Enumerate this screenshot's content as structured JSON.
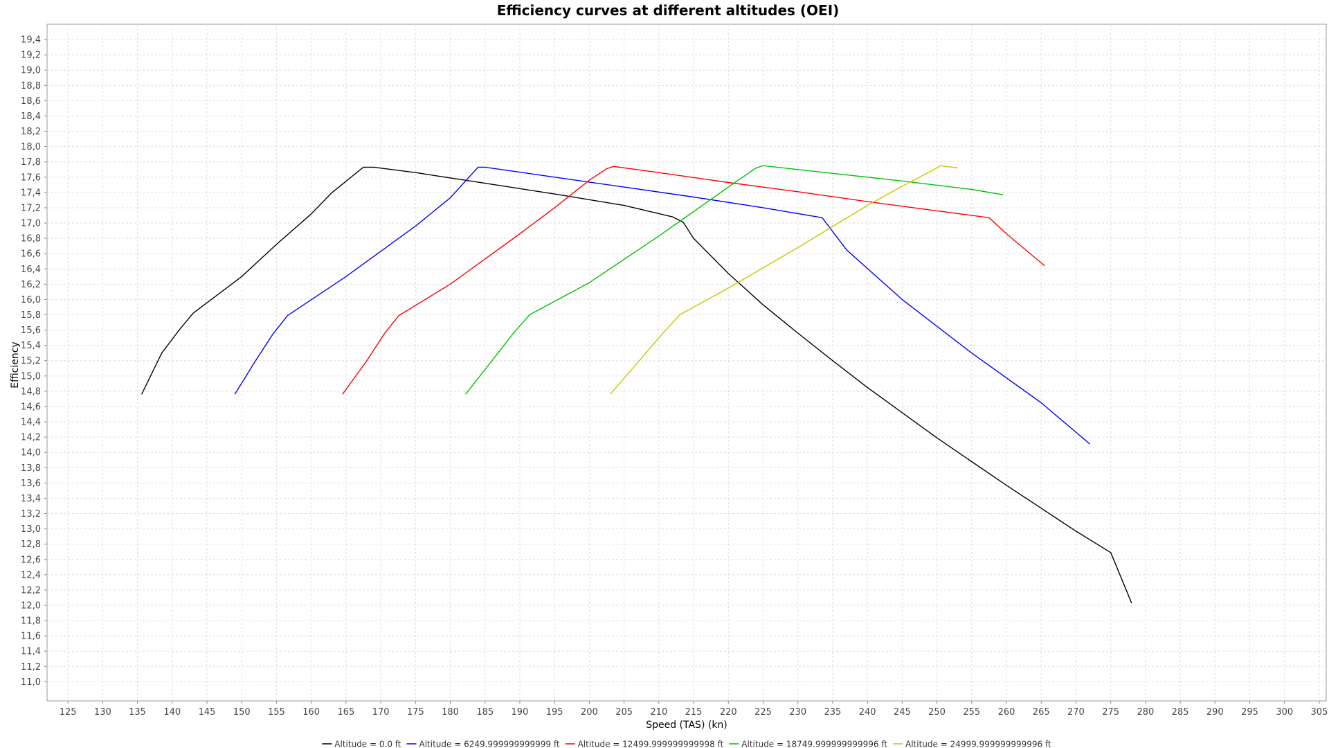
{
  "chart_data": {
    "type": "line",
    "title": "Efficiency curves at different altitudes (OEI)",
    "xlabel": "Speed (TAS) (kn)",
    "ylabel": "Efficiency",
    "xlim": [
      122,
      306
    ],
    "ylim": [
      10.75,
      19.6
    ],
    "x_ticks": [
      125,
      130,
      135,
      140,
      145,
      150,
      155,
      160,
      165,
      170,
      175,
      180,
      185,
      190,
      195,
      200,
      205,
      210,
      215,
      220,
      225,
      230,
      235,
      240,
      245,
      250,
      255,
      260,
      265,
      270,
      275,
      280,
      285,
      290,
      295,
      300,
      305
    ],
    "y_ticks": [
      11.0,
      11.2,
      11.4,
      11.6,
      11.8,
      12.0,
      12.2,
      12.4,
      12.6,
      12.8,
      13.0,
      13.2,
      13.4,
      13.6,
      13.8,
      14.0,
      14.2,
      14.4,
      14.6,
      14.8,
      15.0,
      15.2,
      15.4,
      15.6,
      15.8,
      16.0,
      16.2,
      16.4,
      16.6,
      16.8,
      17.0,
      17.2,
      17.4,
      17.6,
      17.8,
      18.0,
      18.2,
      18.4,
      18.6,
      18.8,
      19.0,
      19.2,
      19.4
    ],
    "decimal_separator": ",",
    "grid": true,
    "legend_position": "bottom",
    "series": [
      {
        "name": "Altitude = 0.0 ft",
        "color": "#000000",
        "x": [
          135.6,
          138.5,
          141.0,
          143.0,
          150.0,
          155.0,
          160.0,
          163.0,
          167.5,
          169.0,
          175.0,
          185.0,
          195.0,
          205.0,
          212.0,
          213.5,
          215.0,
          220.0,
          225.0,
          230.0,
          235.0,
          240.0,
          245.0,
          250.0,
          255.0,
          260.0,
          265.0,
          270.0,
          275.0,
          278.0
        ],
        "y": [
          14.76,
          15.3,
          15.6,
          15.82,
          16.3,
          16.72,
          17.12,
          17.4,
          17.73,
          17.73,
          17.66,
          17.52,
          17.38,
          17.23,
          17.08,
          17.01,
          16.8,
          16.34,
          15.93,
          15.56,
          15.2,
          14.85,
          14.52,
          14.19,
          13.88,
          13.57,
          13.27,
          12.97,
          12.69,
          12.03
        ]
      },
      {
        "name": "Altitude = 6249.999999999999 ft",
        "color": "#0000ff",
        "x": [
          149.0,
          152.0,
          154.5,
          156.6,
          165.0,
          175.0,
          180.0,
          184.0,
          185.0,
          195.0,
          205.0,
          215.0,
          225.0,
          233.5,
          237.0,
          245.0,
          255.0,
          265.0,
          272.0
        ],
        "y": [
          14.76,
          15.2,
          15.55,
          15.79,
          16.3,
          16.96,
          17.33,
          17.73,
          17.73,
          17.6,
          17.47,
          17.34,
          17.2,
          17.07,
          16.65,
          16.0,
          15.3,
          14.65,
          14.11
        ]
      },
      {
        "name": "Altitude = 12499.999999999998 ft",
        "color": "#ff0000",
        "x": [
          164.5,
          168.0,
          170.5,
          172.6,
          180.0,
          190.0,
          195.0,
          200.0,
          202.5,
          203.5,
          210.0,
          220.0,
          230.0,
          240.0,
          250.0,
          257.5,
          260.0,
          265.5
        ],
        "y": [
          14.76,
          15.2,
          15.55,
          15.79,
          16.2,
          16.86,
          17.2,
          17.56,
          17.71,
          17.74,
          17.66,
          17.53,
          17.41,
          17.28,
          17.16,
          17.07,
          16.86,
          16.44
        ]
      },
      {
        "name": "Altitude = 18749.999999999996 ft",
        "color": "#00c000",
        "x": [
          182.2,
          186.0,
          189.0,
          191.4,
          200.0,
          210.0,
          215.0,
          220.0,
          224.0,
          225.0,
          235.0,
          245.0,
          255.0,
          259.5
        ],
        "y": [
          14.76,
          15.2,
          15.55,
          15.8,
          16.22,
          16.83,
          17.15,
          17.47,
          17.72,
          17.75,
          17.65,
          17.55,
          17.44,
          17.37
        ]
      },
      {
        "name": "Altitude = 24999.999999999996 ft",
        "color": "#c8c800",
        "x": [
          203.0,
          207.0,
          210.5,
          213.0,
          220.0,
          230.0,
          240.0,
          245.0,
          250.0,
          250.5,
          253.0
        ],
        "y": [
          14.76,
          15.18,
          15.55,
          15.8,
          16.15,
          16.68,
          17.23,
          17.48,
          17.72,
          17.75,
          17.72
        ]
      }
    ]
  }
}
